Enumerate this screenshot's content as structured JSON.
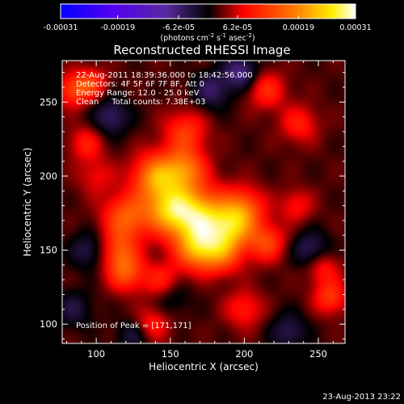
{
  "chart_data": {
    "type": "heatmap",
    "title": "Reconstructed RHESSI Image",
    "xlabel": "Heliocentric X (arcsec)",
    "ylabel": "Heliocentric Y (arcsec)",
    "xlim": [
      77,
      268
    ],
    "ylim": [
      87,
      278
    ],
    "x_ticks": [
      100,
      150,
      200,
      250
    ],
    "y_ticks": [
      100,
      150,
      200,
      250
    ],
    "colorbar": {
      "ticks": [
        "-0.00031",
        "-0.00019",
        "-6.2e-05",
        "6.2e-05",
        "0.00019",
        "0.00031"
      ],
      "values": [
        -0.00031,
        -0.00019,
        -6.2e-05,
        6.2e-05,
        0.00019,
        0.00031
      ],
      "range": [
        -0.00031,
        0.00031
      ],
      "unit_prefix": "(photons cm",
      "unit_exp1": "-2",
      "unit_mid": " s",
      "unit_exp2": "-1",
      "unit_mid2": " asec",
      "unit_exp3": "-2",
      "unit_suffix": ")"
    },
    "annotations": {
      "time_range": "22-Aug-2011 18:39:36.000 to 18:42:56.000",
      "detectors": "Detectors: 4F 5F 6F 7F 8F, Att 0",
      "energy_range": "Energy Range: 12.0 - 25.0 keV",
      "clean_counts": "Clean     Total counts: 7.38E+03",
      "peak_position": "Position of Peak = [171,171]"
    },
    "blobs": [
      {
        "x": 171,
        "y": 171,
        "amp": 1.0,
        "sigma": 14
      },
      {
        "x": 150,
        "y": 178,
        "amp": 0.85,
        "sigma": 12
      },
      {
        "x": 140,
        "y": 200,
        "amp": 0.75,
        "sigma": 11
      },
      {
        "x": 160,
        "y": 205,
        "amp": 0.65,
        "sigma": 10
      },
      {
        "x": 120,
        "y": 172,
        "amp": 0.6,
        "sigma": 11
      },
      {
        "x": 168,
        "y": 150,
        "amp": 0.65,
        "sigma": 10
      },
      {
        "x": 185,
        "y": 148,
        "amp": 0.55,
        "sigma": 10
      },
      {
        "x": 200,
        "y": 178,
        "amp": 0.55,
        "sigma": 10
      },
      {
        "x": 192,
        "y": 165,
        "amp": 0.6,
        "sigma": 10
      },
      {
        "x": 120,
        "y": 135,
        "amp": 0.55,
        "sigma": 9
      },
      {
        "x": 215,
        "y": 155,
        "amp": 0.5,
        "sigma": 9
      },
      {
        "x": 160,
        "y": 230,
        "amp": 0.45,
        "sigma": 10
      },
      {
        "x": 115,
        "y": 150,
        "amp": 0.45,
        "sigma": 9
      },
      {
        "x": 145,
        "y": 128,
        "amp": 0.45,
        "sigma": 9
      },
      {
        "x": 85,
        "y": 258,
        "amp": 0.5,
        "sigma": 8
      },
      {
        "x": 97,
        "y": 263,
        "amp": 0.4,
        "sigma": 7
      },
      {
        "x": 215,
        "y": 258,
        "amp": 0.4,
        "sigma": 9
      },
      {
        "x": 237,
        "y": 235,
        "amp": 0.35,
        "sigma": 9
      },
      {
        "x": 93,
        "y": 222,
        "amp": 0.35,
        "sigma": 8
      },
      {
        "x": 253,
        "y": 138,
        "amp": 0.35,
        "sigma": 8
      },
      {
        "x": 258,
        "y": 118,
        "amp": 0.45,
        "sigma": 8
      },
      {
        "x": 138,
        "y": 100,
        "amp": 0.35,
        "sigma": 8
      },
      {
        "x": 200,
        "y": 110,
        "amp": 0.35,
        "sigma": 9
      },
      {
        "x": 235,
        "y": 180,
        "amp": 0.3,
        "sigma": 8
      },
      {
        "x": 100,
        "y": 200,
        "amp": 0.25,
        "sigma": 9
      },
      {
        "x": 178,
        "y": 258,
        "amp": -0.35,
        "sigma": 9
      },
      {
        "x": 198,
        "y": 270,
        "amp": -0.45,
        "sigma": 8
      },
      {
        "x": 245,
        "y": 150,
        "amp": -0.35,
        "sigma": 9
      },
      {
        "x": 110,
        "y": 240,
        "amp": -0.35,
        "sigma": 9
      },
      {
        "x": 150,
        "y": 120,
        "amp": -0.3,
        "sigma": 9
      },
      {
        "x": 95,
        "y": 150,
        "amp": -0.3,
        "sigma": 9
      },
      {
        "x": 230,
        "y": 95,
        "amp": -0.3,
        "sigma": 9
      },
      {
        "x": 85,
        "y": 110,
        "amp": -0.25,
        "sigma": 9
      },
      {
        "x": 125,
        "y": 92,
        "amp": -0.25,
        "sigma": 8
      }
    ]
  },
  "footer": {
    "timestamp": "23-Aug-2013 23:22"
  }
}
